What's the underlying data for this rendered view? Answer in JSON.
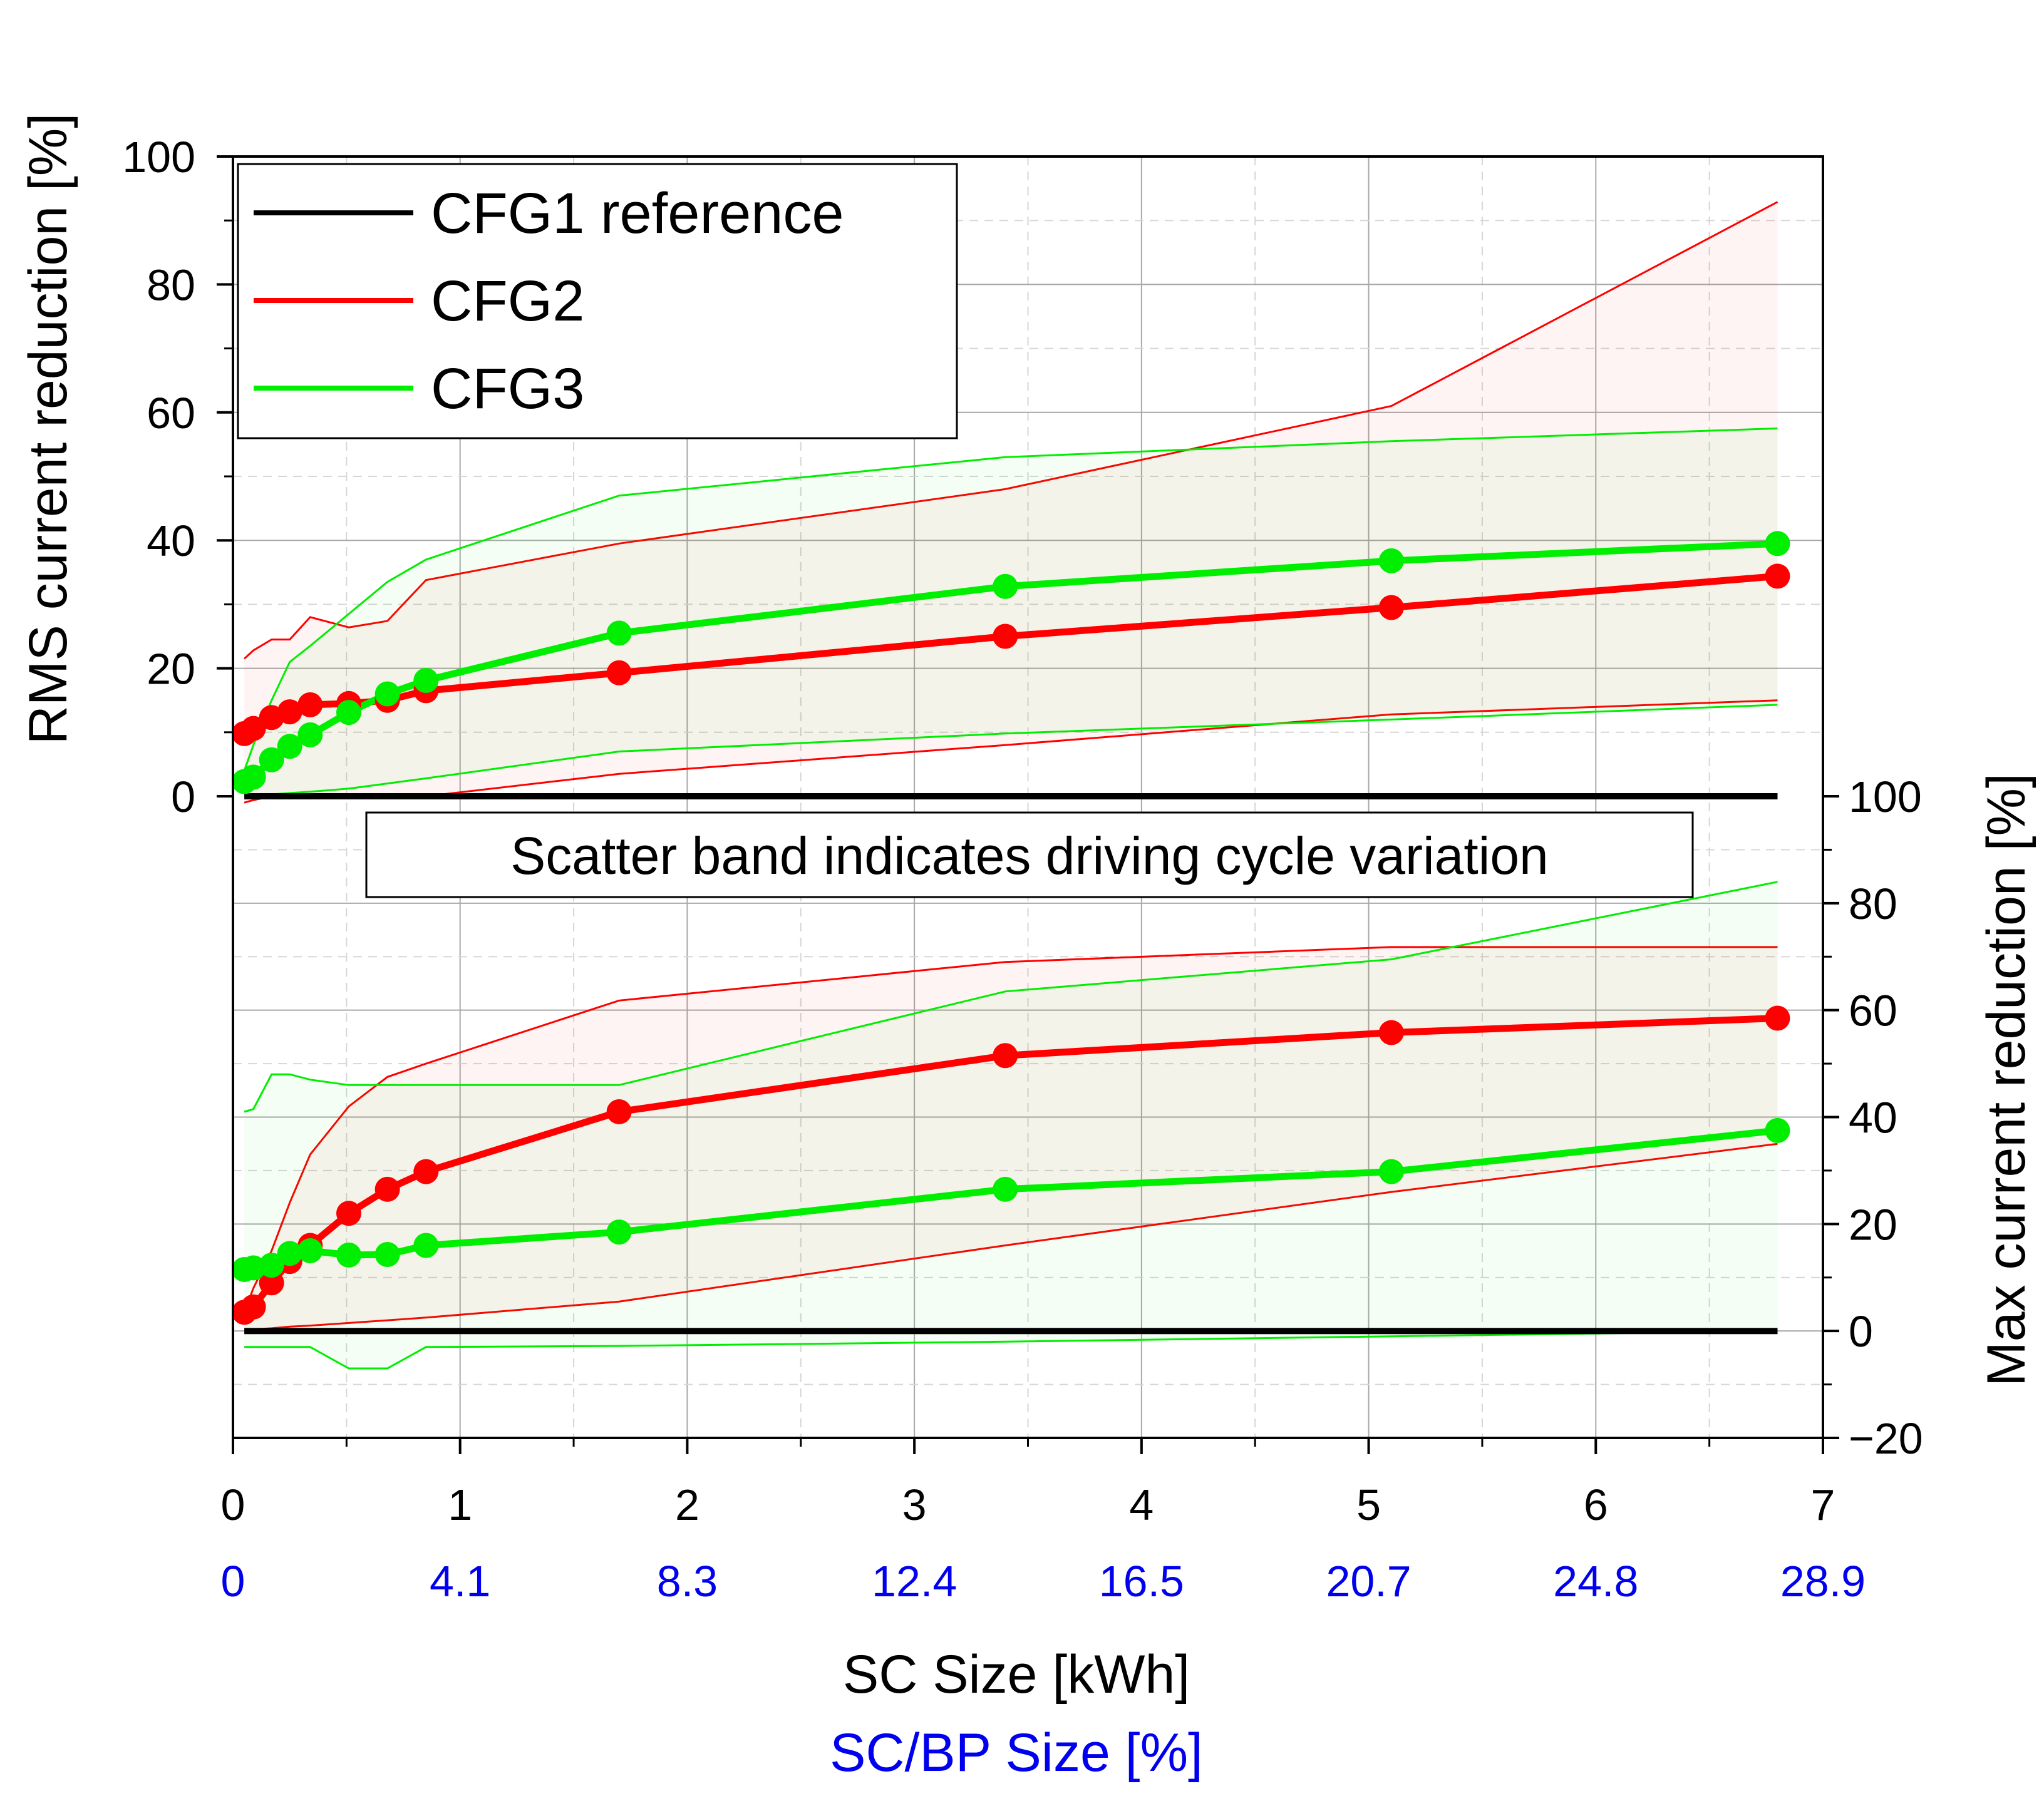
{
  "chart_data": {
    "type": "line",
    "x_axis": {
      "label": "SC Size [kWh]",
      "range": [
        0,
        7
      ],
      "ticks": [
        "0",
        "1",
        "2",
        "3",
        "4",
        "5",
        "6",
        "7"
      ]
    },
    "x2_axis": {
      "label": "SC/BP Size [%]",
      "ticks": [
        "0",
        "4.1",
        "8.3",
        "12.4",
        "16.5",
        "20.7",
        "24.8",
        "28.9"
      ]
    },
    "x": [
      0.05,
      0.09,
      0.17,
      0.25,
      0.34,
      0.51,
      0.68,
      0.85,
      1.7,
      3.4,
      5.1,
      6.8
    ],
    "top_panel": {
      "ylabel": "RMS current reduction [%]",
      "ylim": [
        0,
        100
      ],
      "yticks": [
        "0",
        "20",
        "40",
        "60",
        "80",
        "100"
      ],
      "series": [
        {
          "name": "CFG1 reference",
          "color": "#000000",
          "values": [
            0,
            0,
            0,
            0,
            0,
            0,
            0,
            0,
            0,
            0,
            0,
            0
          ]
        },
        {
          "name": "CFG2",
          "color": "#ff0000",
          "values": [
            9.8,
            10.6,
            12.3,
            13.2,
            14.3,
            14.5,
            15.0,
            16.5,
            19.3,
            25.0,
            29.5,
            34.4
          ],
          "band_upper": [
            21.5,
            22.8,
            24.5,
            24.5,
            28.0,
            26.4,
            27.4,
            33.8,
            39.5,
            48.0,
            61.0,
            92.9
          ],
          "band_lower": [
            -1.0,
            -0.6,
            0.0,
            0.0,
            0.0,
            0.0,
            0.0,
            0.0,
            3.5,
            8.0,
            12.8,
            15.0
          ]
        },
        {
          "name": "CFG3",
          "color": "#00ee00",
          "values": [
            2.3,
            3.0,
            5.7,
            7.8,
            9.6,
            13.1,
            16.0,
            18.1,
            25.5,
            32.8,
            36.8,
            39.5
          ],
          "band_upper": [
            4.0,
            8.0,
            15.0,
            21.0,
            23.5,
            28.5,
            33.5,
            37.0,
            47.0,
            53.0,
            55.5,
            57.5
          ],
          "band_lower": [
            0.0,
            0.0,
            0.3,
            0.5,
            0.7,
            1.2,
            2.0,
            2.8,
            7.0,
            9.8,
            12.0,
            14.3
          ]
        }
      ]
    },
    "bottom_panel": {
      "ylabel": "Max current reduction [%]",
      "ylim": [
        -20,
        100
      ],
      "yticks": [
        "−20",
        "0",
        "20",
        "40",
        "60",
        "80",
        "100"
      ],
      "series": [
        {
          "name": "CFG1 reference",
          "color": "#000000",
          "values": [
            0,
            0,
            0,
            0,
            0,
            0,
            0,
            0,
            0,
            0,
            0,
            0
          ]
        },
        {
          "name": "CFG2",
          "color": "#ff0000",
          "values": [
            3.5,
            4.5,
            9.0,
            13.0,
            16.0,
            22.0,
            26.5,
            29.8,
            41.0,
            51.5,
            55.8,
            58.5
          ],
          "band_upper": [
            3.5,
            8.0,
            15.0,
            24.0,
            33.0,
            42.0,
            47.5,
            50.0,
            61.8,
            69.0,
            71.8,
            71.8
          ],
          "band_lower": [
            0.0,
            0.3,
            0.5,
            0.8,
            1.0,
            1.5,
            2.0,
            2.5,
            5.5,
            16.0,
            26.0,
            35.0
          ]
        },
        {
          "name": "CFG3",
          "color": "#00ee00",
          "values": [
            11.5,
            11.8,
            12.3,
            14.5,
            15.0,
            14.2,
            14.3,
            16.0,
            18.5,
            26.5,
            29.8,
            37.5
          ],
          "band_upper": [
            41.0,
            41.5,
            48.0,
            48.0,
            47.0,
            46.0,
            46.0,
            46.0,
            46.0,
            63.5,
            69.5,
            84.0
          ],
          "band_lower": [
            -3.0,
            -3.0,
            -3.0,
            -3.0,
            -3.0,
            -7.0,
            -7.0,
            -3.0,
            -2.8,
            -2.0,
            -1.0,
            0.0
          ]
        }
      ]
    },
    "legend": [
      "CFG1 reference",
      "CFG2",
      "CFG3"
    ],
    "annotation": "Scatter band indicates driving cycle variation",
    "grid": true
  }
}
